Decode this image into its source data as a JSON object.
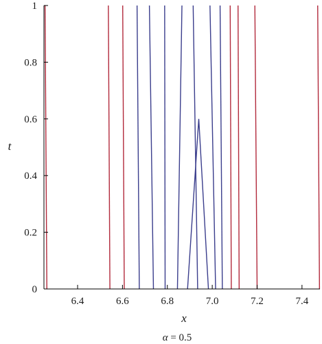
{
  "chart_data": {
    "type": "line",
    "xlabel": "x",
    "ylabel": "t",
    "caption": {
      "symbol": "α",
      "rest": " = 0.5"
    },
    "xlim": [
      6.25,
      7.48
    ],
    "ylim": [
      0,
      1
    ],
    "x_ticks": [
      6.4,
      6.6,
      6.8,
      7.0,
      7.2,
      7.4
    ],
    "x_tick_labels": [
      "6.4",
      "6.6",
      "6.8",
      "7.0",
      "7.2",
      "7.4"
    ],
    "y_ticks": [
      0,
      0.2,
      0.4,
      0.6,
      0.8,
      1
    ],
    "y_tick_labels": [
      "0",
      "0.2",
      "0.4",
      "0.6",
      "0.8",
      "1"
    ],
    "colors": {
      "red": "#b22a3c",
      "blue": "#3a3d8c",
      "axis": "#000000"
    },
    "series": [
      {
        "color": "red",
        "points": [
          [
            6.263,
            0
          ],
          [
            6.255,
            1
          ]
        ]
      },
      {
        "color": "red",
        "points": [
          [
            6.544,
            0
          ],
          [
            6.537,
            1
          ]
        ]
      },
      {
        "color": "red",
        "points": [
          [
            6.608,
            0
          ],
          [
            6.601,
            1
          ]
        ]
      },
      {
        "color": "blue",
        "points": [
          [
            6.675,
            0
          ],
          [
            6.665,
            1
          ]
        ]
      },
      {
        "color": "blue",
        "points": [
          [
            6.738,
            0
          ],
          [
            6.72,
            1
          ]
        ]
      },
      {
        "color": "blue",
        "points": [
          [
            6.79,
            0
          ],
          [
            6.788,
            1
          ]
        ]
      },
      {
        "color": "blue",
        "points": [
          [
            6.845,
            0
          ],
          [
            6.865,
            1
          ]
        ]
      },
      {
        "color": "blue",
        "points": [
          [
            6.89,
            0
          ],
          [
            6.94,
            0.6
          ],
          [
            6.983,
            0
          ]
        ]
      },
      {
        "color": "blue",
        "points": [
          [
            6.935,
            0
          ],
          [
            6.915,
            1
          ]
        ]
      },
      {
        "color": "blue",
        "points": [
          [
            7.015,
            0
          ],
          [
            6.99,
            1
          ]
        ]
      },
      {
        "color": "blue",
        "points": [
          [
            7.045,
            0
          ],
          [
            7.035,
            1
          ]
        ]
      },
      {
        "color": "red",
        "points": [
          [
            7.085,
            0
          ],
          [
            7.08,
            1
          ]
        ]
      },
      {
        "color": "red",
        "points": [
          [
            7.12,
            0
          ],
          [
            7.115,
            1
          ]
        ]
      },
      {
        "color": "red",
        "points": [
          [
            7.2,
            0
          ],
          [
            7.19,
            1
          ]
        ]
      },
      {
        "color": "red",
        "points": [
          [
            7.478,
            0
          ],
          [
            7.47,
            1
          ]
        ]
      }
    ]
  }
}
